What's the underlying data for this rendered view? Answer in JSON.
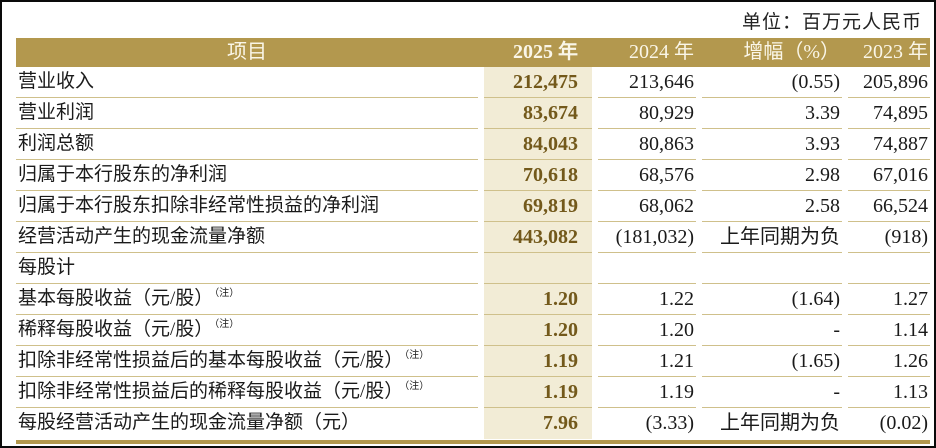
{
  "unit_label": "单位：百万元人民币",
  "colors": {
    "header_bg": "#B3984E",
    "header_text": "#FAF6E8",
    "highlight_col_bg": "#F2ECD6",
    "highlight_value_text": "#73591B",
    "row_line": "#CFC08B",
    "accent_bar": "#B3984E"
  },
  "table": {
    "header": {
      "item": "项目",
      "y2025": "2025 年",
      "y2024": "2024 年",
      "growth": "增幅（%）",
      "y2023": "2023 年"
    },
    "rows": [
      {
        "label": "营业收入",
        "note": "",
        "v2025": "212,475",
        "v2024": "213,646",
        "growth": "(0.55)",
        "v2023": "205,896"
      },
      {
        "label": "营业利润",
        "note": "",
        "v2025": "83,674",
        "v2024": "80,929",
        "growth": "3.39",
        "v2023": "74,895"
      },
      {
        "label": "利润总额",
        "note": "",
        "v2025": "84,043",
        "v2024": "80,863",
        "growth": "3.93",
        "v2023": "74,887"
      },
      {
        "label": "归属于本行股东的净利润",
        "note": "",
        "v2025": "70,618",
        "v2024": "68,576",
        "growth": "2.98",
        "v2023": "67,016"
      },
      {
        "label": "归属于本行股东扣除非经常性损益的净利润",
        "note": "",
        "v2025": "69,819",
        "v2024": "68,062",
        "growth": "2.58",
        "v2023": "66,524"
      },
      {
        "label": "经营活动产生的现金流量净额",
        "note": "",
        "v2025": "443,082",
        "v2024": "(181,032)",
        "growth": "上年同期为负",
        "v2023": "(918)"
      },
      {
        "label": "每股计",
        "note": "",
        "v2025": "",
        "v2024": "",
        "growth": "",
        "v2023": ""
      },
      {
        "label": "基本每股收益（元/股）",
        "note": "（注）",
        "v2025": "1.20",
        "v2024": "1.22",
        "growth": "(1.64)",
        "v2023": "1.27"
      },
      {
        "label": "稀释每股收益（元/股）",
        "note": "（注）",
        "v2025": "1.20",
        "v2024": "1.20",
        "growth": "-",
        "v2023": "1.14"
      },
      {
        "label": "扣除非经常性损益后的基本每股收益（元/股）",
        "note": "（注）",
        "v2025": "1.19",
        "v2024": "1.21",
        "growth": "(1.65)",
        "v2023": "1.26"
      },
      {
        "label": "扣除非经常性损益后的稀释每股收益（元/股）",
        "note": "（注）",
        "v2025": "1.19",
        "v2024": "1.19",
        "growth": "-",
        "v2023": "1.13"
      },
      {
        "label": "每股经营活动产生的现金流量净额（元）",
        "note": "",
        "v2025": "7.96",
        "v2024": "(3.33)",
        "growth": "上年同期为负",
        "v2023": "(0.02)"
      }
    ]
  }
}
